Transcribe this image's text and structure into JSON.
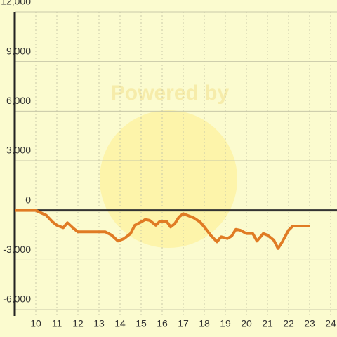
{
  "chart_data": {
    "type": "line",
    "watermark": "Powered by",
    "x": [
      9,
      10,
      10.5,
      10.8,
      11,
      11.3,
      11.5,
      11.8,
      12,
      12.5,
      13,
      13.3,
      13.6,
      13.9,
      14.2,
      14.5,
      14.7,
      15,
      15.2,
      15.4,
      15.7,
      15.9,
      16.2,
      16.4,
      16.6,
      16.8,
      17,
      17.2,
      17.5,
      17.8,
      18,
      18.3,
      18.6,
      18.8,
      19.1,
      19.3,
      19.5,
      19.7,
      20,
      20.3,
      20.5,
      20.8,
      21,
      21.3,
      21.5,
      21.7,
      22,
      22.2,
      23
    ],
    "values": [
      0,
      0,
      -300,
      -700,
      -900,
      -1050,
      -750,
      -1100,
      -1300,
      -1300,
      -1300,
      -1300,
      -1500,
      -1850,
      -1700,
      -1400,
      -900,
      -700,
      -550,
      -600,
      -900,
      -650,
      -650,
      -1000,
      -800,
      -400,
      -200,
      -300,
      -450,
      -700,
      -1000,
      -1500,
      -1900,
      -1600,
      -1700,
      -1550,
      -1150,
      -1200,
      -1400,
      -1400,
      -1850,
      -1400,
      -1500,
      -1800,
      -2300,
      -1900,
      -1200,
      -950,
      -950
    ],
    "color": "#e07b24",
    "xlim": [
      9,
      24.6
    ],
    "xticks": [
      10,
      11,
      12,
      13,
      14,
      15,
      16,
      17,
      18,
      19,
      20,
      21,
      22,
      23,
      24
    ],
    "ylim": [
      -6000,
      12000
    ],
    "yticks": [
      {
        "value": -6000,
        "label": "-6,000"
      },
      {
        "value": -3000,
        "label": "-3,000"
      },
      0,
      {
        "value": 3000,
        "label": "3,000"
      },
      {
        "value": 6000,
        "label": "6,000"
      },
      {
        "value": 9000,
        "label": "9,000"
      },
      {
        "value": 12000,
        "label": "12,000"
      }
    ],
    "grid": true
  }
}
